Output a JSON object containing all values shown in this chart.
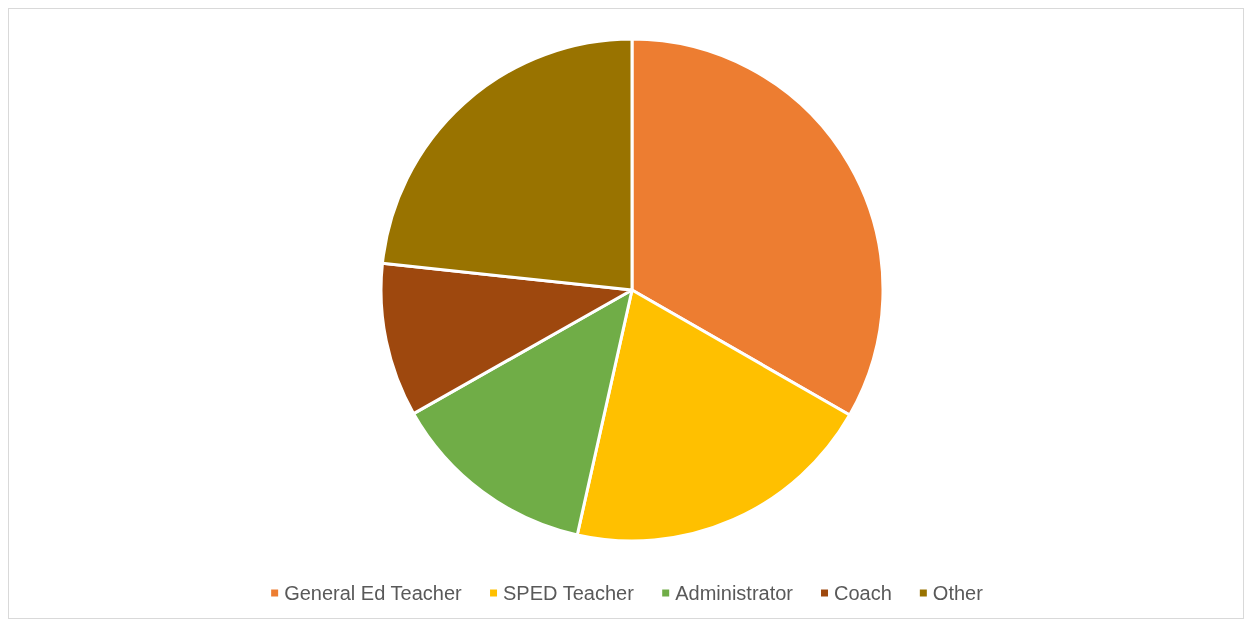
{
  "chart_data": {
    "type": "pie",
    "categories": [
      "General Ed Teacher",
      "SPED Teacher",
      "Administrator",
      "Coach",
      "Other"
    ],
    "values": [
      33.3,
      20.2,
      13.3,
      9.9,
      23.3
    ],
    "colors": [
      "#ed7d31",
      "#ffc000",
      "#70ad47",
      "#9e480e",
      "#997300"
    ],
    "legend": "bottom"
  }
}
